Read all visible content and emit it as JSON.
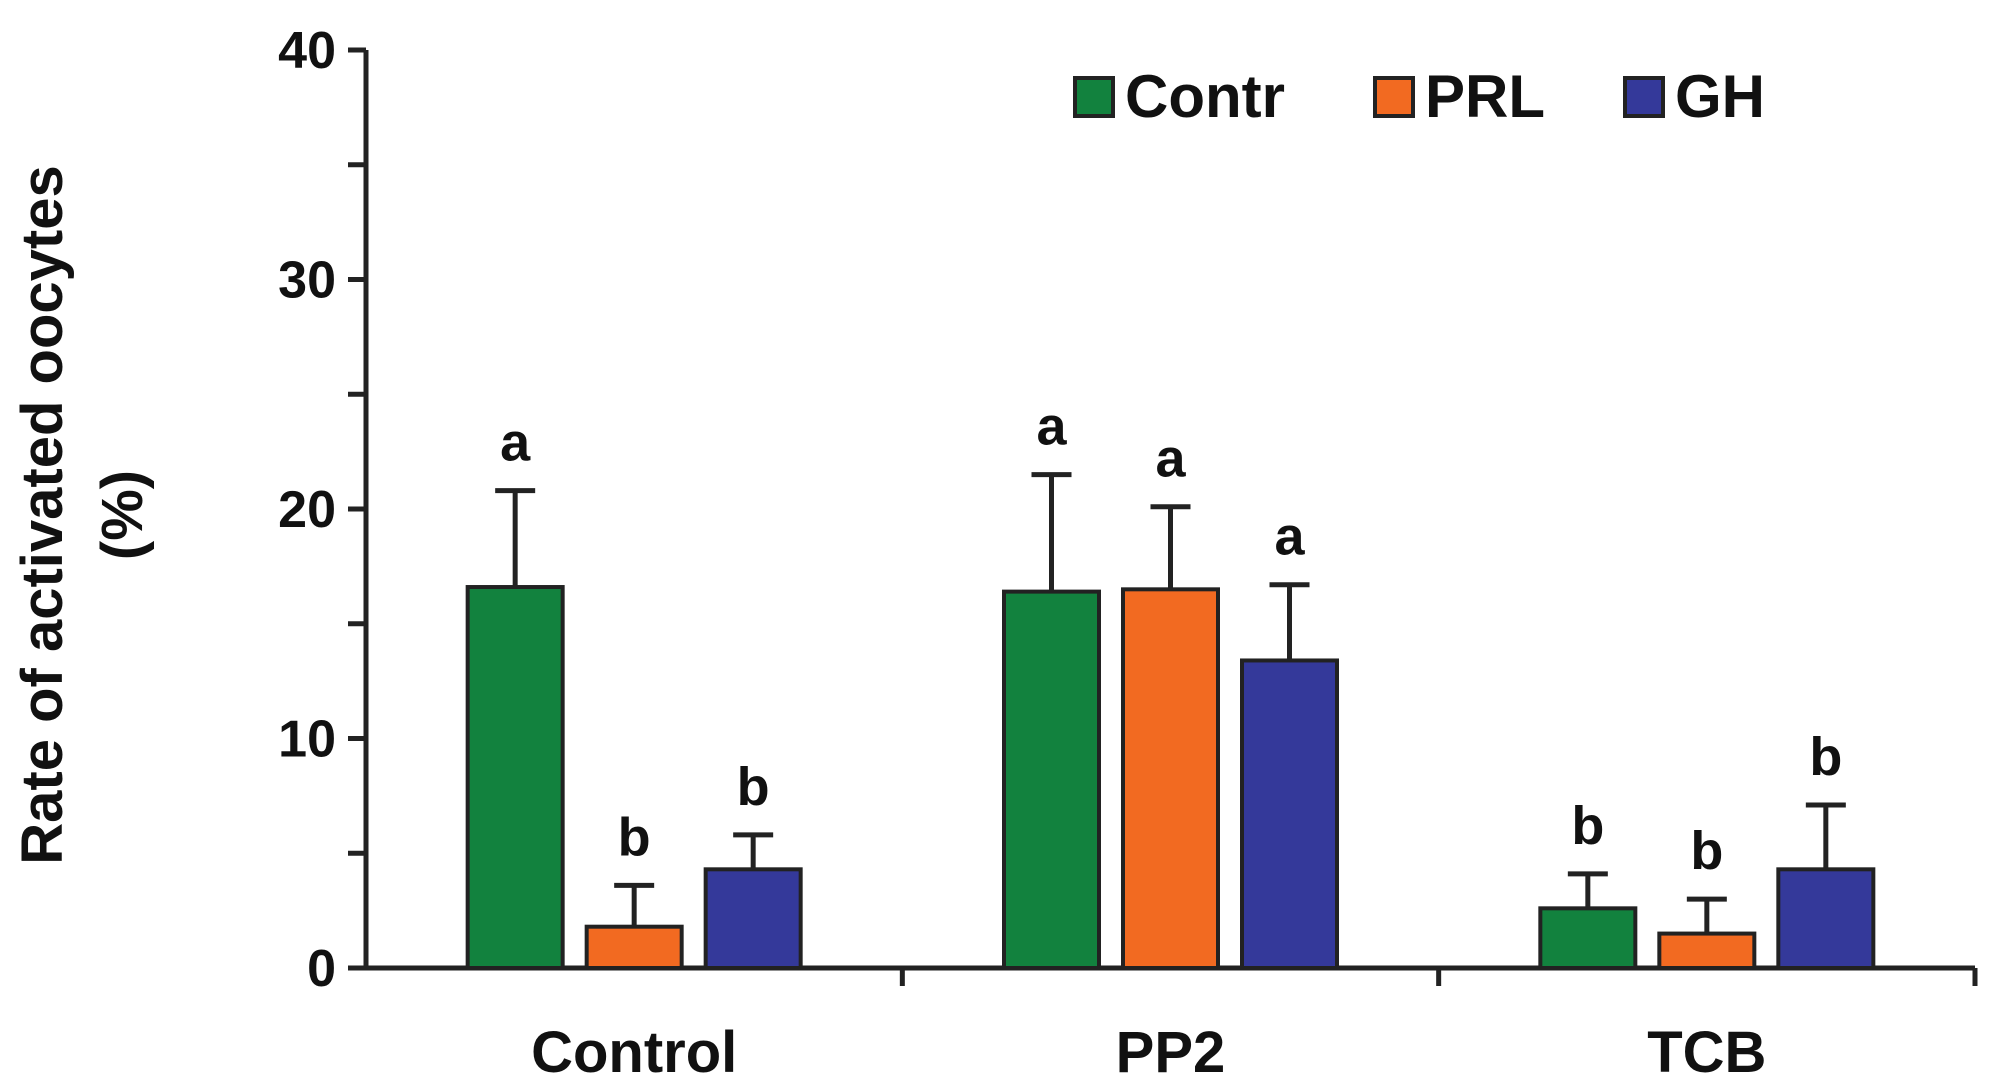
{
  "chart_data": {
    "type": "bar",
    "title": "",
    "xlabel": "",
    "ylabel_line1": "Rate of activated oocytes",
    "ylabel_line2": "(%)",
    "ylim": [
      0,
      40
    ],
    "yticks": [
      0,
      10,
      20,
      30,
      40
    ],
    "ytick_labels": [
      "0",
      "10",
      "20",
      "30",
      "40"
    ],
    "categories": [
      "Control",
      "PP2",
      "TCB"
    ],
    "series": [
      {
        "name": "Contr",
        "color": "#12823e",
        "values": [
          16.6,
          16.4,
          2.6
        ],
        "errors": [
          4.2,
          5.1,
          1.5
        ],
        "letters": [
          "a",
          "a",
          "b"
        ]
      },
      {
        "name": "PRL",
        "color": "#f26a21",
        "values": [
          1.8,
          16.5,
          1.5
        ],
        "errors": [
          1.8,
          3.6,
          1.5
        ],
        "letters": [
          "b",
          "a",
          "b"
        ]
      },
      {
        "name": "GH",
        "color": "#34399a",
        "values": [
          4.3,
          13.4,
          4.3
        ],
        "errors": [
          1.5,
          3.3,
          2.8
        ],
        "letters": [
          "b",
          "a",
          "b"
        ]
      }
    ],
    "grid": false,
    "legend_position": "top-right"
  }
}
